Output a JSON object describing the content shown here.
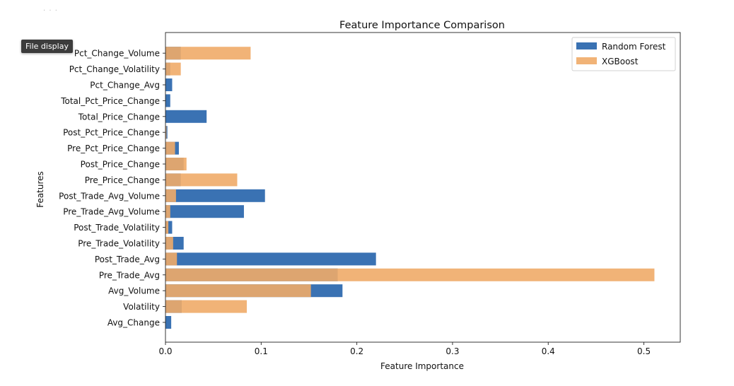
{
  "tooltip": {
    "label": "File display"
  },
  "top_artifact": {
    "text": "·   · ·"
  },
  "chart_data": {
    "type": "bar",
    "orientation": "horizontal",
    "title": "Feature Importance Comparison",
    "xlabel": "Feature Importance",
    "ylabel": "Features",
    "xlim": [
      0,
      0.538
    ],
    "xticks": [
      "0.0",
      "0.1",
      "0.2",
      "0.3",
      "0.4",
      "0.5"
    ],
    "xtick_values": [
      0,
      0.1,
      0.2,
      0.3,
      0.4,
      0.5
    ],
    "grid": false,
    "legend_position": "top-right",
    "categories": [
      "Avg_Change",
      "Volatility",
      "Avg_Volume",
      "Pre_Trade_Avg",
      "Post_Trade_Avg",
      "Pre_Trade_Volatility",
      "Post_Trade_Volatility",
      "Pre_Trade_Avg_Volume",
      "Post_Trade_Avg_Volume",
      "Pre_Price_Change",
      "Post_Price_Change",
      "Pre_Pct_Price_Change",
      "Post_Pct_Price_Change",
      "Total_Price_Change",
      "Total_Pct_Price_Change",
      "Pct_Change_Avg",
      "Pct_Change_Volatility",
      "Pct_Change_Volume"
    ],
    "series": [
      {
        "name": "Random Forest",
        "color": "#1f5fa8",
        "opacity": 0.88,
        "values": [
          0.006,
          0.017,
          0.185,
          0.18,
          0.22,
          0.019,
          0.007,
          0.082,
          0.104,
          0.016,
          0.019,
          0.014,
          0.002,
          0.043,
          0.005,
          0.007,
          0.005,
          0.016
        ]
      },
      {
        "name": "XGBoost",
        "color": "#f0ab68",
        "opacity": 0.9,
        "values": [
          0.0,
          0.085,
          0.152,
          0.511,
          0.012,
          0.008,
          0.003,
          0.005,
          0.011,
          0.075,
          0.022,
          0.01,
          0.001,
          0.0,
          0.0,
          0.0,
          0.016,
          0.089
        ]
      }
    ],
    "overlap_color": "#a57c56"
  }
}
